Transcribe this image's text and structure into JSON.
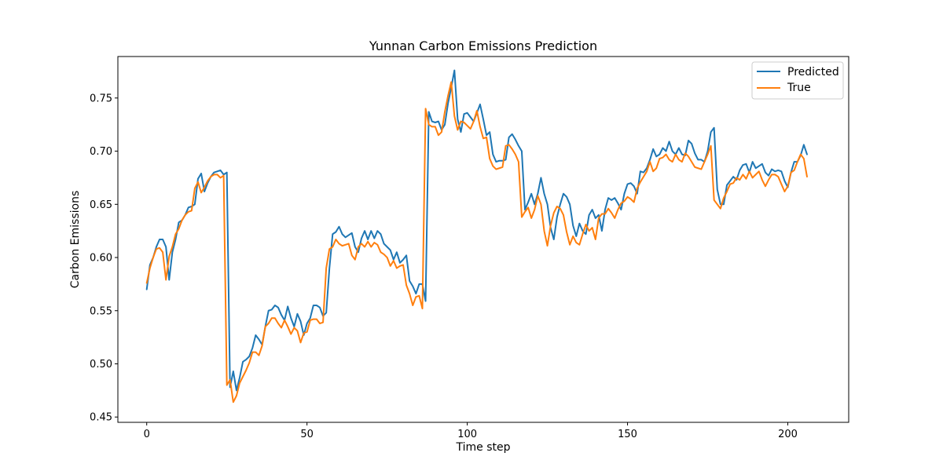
{
  "chart_data": {
    "type": "line",
    "title": "Yunnan Carbon Emissions Prediction",
    "xlabel": "Time step",
    "ylabel": "Carbon Emissions",
    "xlim": [
      -9,
      219
    ],
    "ylim": [
      0.445,
      0.789
    ],
    "xticks": [
      0,
      50,
      100,
      150,
      200
    ],
    "yticks": [
      0.45,
      0.5,
      0.55,
      0.6,
      0.65,
      0.7,
      0.75
    ],
    "ytick_labels": [
      "0.45",
      "0.50",
      "0.55",
      "0.60",
      "0.65",
      "0.70",
      "0.75"
    ],
    "grid": false,
    "legend_position": "top-right",
    "series": [
      {
        "name": "Predicted",
        "color": "#1f77b4",
        "values": [
          0.57,
          0.593,
          0.6,
          0.61,
          0.617,
          0.617,
          0.61,
          0.579,
          0.605,
          0.617,
          0.633,
          0.635,
          0.64,
          0.647,
          0.648,
          0.65,
          0.674,
          0.679,
          0.662,
          0.67,
          0.676,
          0.68,
          0.681,
          0.682,
          0.678,
          0.68,
          0.478,
          0.493,
          0.475,
          0.487,
          0.502,
          0.504,
          0.507,
          0.515,
          0.527,
          0.523,
          0.518,
          0.535,
          0.55,
          0.551,
          0.555,
          0.553,
          0.546,
          0.541,
          0.554,
          0.543,
          0.535,
          0.547,
          0.54,
          0.527,
          0.538,
          0.543,
          0.555,
          0.555,
          0.553,
          0.545,
          0.548,
          0.59,
          0.622,
          0.624,
          0.629,
          0.622,
          0.619,
          0.621,
          0.623,
          0.61,
          0.605,
          0.618,
          0.625,
          0.617,
          0.625,
          0.618,
          0.625,
          0.622,
          0.613,
          0.61,
          0.607,
          0.598,
          0.605,
          0.595,
          0.598,
          0.602,
          0.578,
          0.573,
          0.566,
          0.575,
          0.575,
          0.559,
          0.737,
          0.728,
          0.727,
          0.728,
          0.72,
          0.725,
          0.745,
          0.76,
          0.776,
          0.73,
          0.718,
          0.735,
          0.736,
          0.732,
          0.728,
          0.736,
          0.744,
          0.73,
          0.715,
          0.718,
          0.697,
          0.69,
          0.691,
          0.691,
          0.692,
          0.713,
          0.716,
          0.711,
          0.705,
          0.7,
          0.645,
          0.652,
          0.66,
          0.65,
          0.66,
          0.675,
          0.66,
          0.65,
          0.628,
          0.617,
          0.638,
          0.65,
          0.66,
          0.657,
          0.65,
          0.63,
          0.62,
          0.632,
          0.625,
          0.622,
          0.64,
          0.645,
          0.637,
          0.64,
          0.625,
          0.645,
          0.656,
          0.654,
          0.656,
          0.651,
          0.645,
          0.66,
          0.669,
          0.67,
          0.667,
          0.66,
          0.681,
          0.68,
          0.684,
          0.692,
          0.702,
          0.695,
          0.697,
          0.703,
          0.7,
          0.709,
          0.7,
          0.697,
          0.703,
          0.697,
          0.696,
          0.71,
          0.707,
          0.698,
          0.692,
          0.692,
          0.69,
          0.7,
          0.718,
          0.722,
          0.664,
          0.65,
          0.65,
          0.668,
          0.672,
          0.676,
          0.673,
          0.682,
          0.687,
          0.688,
          0.68,
          0.69,
          0.684,
          0.686,
          0.688,
          0.68,
          0.677,
          0.683,
          0.681,
          0.682,
          0.681,
          0.672,
          0.666,
          0.68,
          0.69,
          0.69,
          0.696,
          0.706,
          0.697
        ]
      },
      {
        "name": "True",
        "color": "#ff7f0e",
        "values": [
          0.576,
          0.59,
          0.6,
          0.608,
          0.609,
          0.605,
          0.579,
          0.601,
          0.61,
          0.622,
          0.627,
          0.635,
          0.64,
          0.643,
          0.644,
          0.665,
          0.671,
          0.661,
          0.666,
          0.672,
          0.676,
          0.678,
          0.678,
          0.675,
          0.677,
          0.48,
          0.485,
          0.464,
          0.47,
          0.482,
          0.488,
          0.494,
          0.501,
          0.511,
          0.511,
          0.508,
          0.517,
          0.535,
          0.538,
          0.543,
          0.543,
          0.538,
          0.534,
          0.541,
          0.535,
          0.528,
          0.534,
          0.531,
          0.52,
          0.529,
          0.53,
          0.541,
          0.542,
          0.542,
          0.538,
          0.539,
          0.59,
          0.608,
          0.61,
          0.617,
          0.613,
          0.611,
          0.612,
          0.613,
          0.602,
          0.598,
          0.61,
          0.613,
          0.61,
          0.615,
          0.61,
          0.614,
          0.612,
          0.605,
          0.603,
          0.6,
          0.592,
          0.597,
          0.59,
          0.592,
          0.593,
          0.574,
          0.566,
          0.555,
          0.563,
          0.564,
          0.552,
          0.74,
          0.725,
          0.723,
          0.723,
          0.715,
          0.718,
          0.737,
          0.752,
          0.765,
          0.733,
          0.72,
          0.728,
          0.727,
          0.724,
          0.721,
          0.728,
          0.738,
          0.723,
          0.712,
          0.713,
          0.693,
          0.686,
          0.683,
          0.684,
          0.685,
          0.705,
          0.706,
          0.702,
          0.697,
          0.69,
          0.638,
          0.643,
          0.647,
          0.637,
          0.645,
          0.658,
          0.65,
          0.625,
          0.611,
          0.63,
          0.642,
          0.648,
          0.646,
          0.64,
          0.624,
          0.612,
          0.62,
          0.614,
          0.612,
          0.622,
          0.631,
          0.625,
          0.628,
          0.617,
          0.637,
          0.641,
          0.641,
          0.646,
          0.642,
          0.637,
          0.645,
          0.651,
          0.653,
          0.657,
          0.655,
          0.652,
          0.665,
          0.671,
          0.676,
          0.681,
          0.69,
          0.681,
          0.684,
          0.693,
          0.694,
          0.697,
          0.692,
          0.69,
          0.697,
          0.692,
          0.69,
          0.698,
          0.695,
          0.69,
          0.685,
          0.684,
          0.683,
          0.69,
          0.697,
          0.705,
          0.654,
          0.65,
          0.646,
          0.656,
          0.662,
          0.669,
          0.67,
          0.675,
          0.673,
          0.678,
          0.674,
          0.681,
          0.675,
          0.678,
          0.681,
          0.673,
          0.667,
          0.673,
          0.678,
          0.678,
          0.676,
          0.669,
          0.662,
          0.667,
          0.68,
          0.682,
          0.69,
          0.697,
          0.693,
          0.676
        ]
      }
    ]
  }
}
